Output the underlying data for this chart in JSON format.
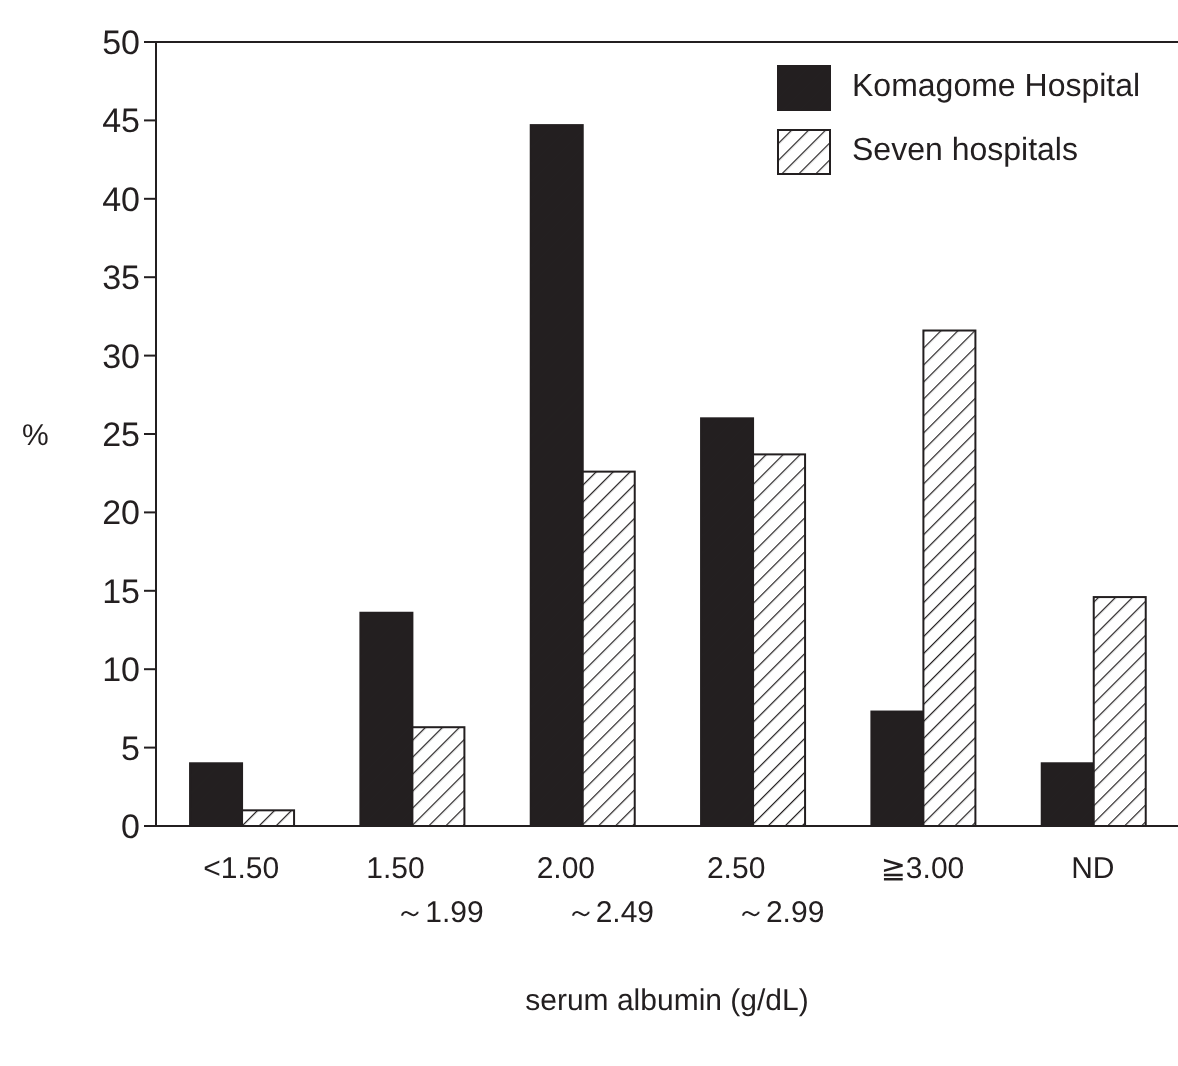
{
  "chart_data": {
    "type": "bar",
    "xlabel": "serum albumin (g/dL)",
    "ylabel": "%",
    "categories": [
      "<1.50",
      "1.50\n～1.99",
      "2.00\n～2.49",
      "2.50\n～2.99",
      "≧3.00",
      "ND"
    ],
    "series": [
      {
        "name": "Komagome Hospital",
        "color": "#231f20",
        "values": [
          4,
          13.6,
          44.7,
          26,
          7.3,
          4
        ]
      },
      {
        "name": "Seven hospitals",
        "color": "#ffffff",
        "values": [
          1,
          6.3,
          22.6,
          23.7,
          31.6,
          14.6
        ]
      }
    ],
    "ylim": [
      0,
      50
    ],
    "yticks": [
      0,
      5,
      10,
      15,
      20,
      25,
      30,
      35,
      40,
      45,
      50
    ],
    "grid": false,
    "legend": "top right"
  }
}
